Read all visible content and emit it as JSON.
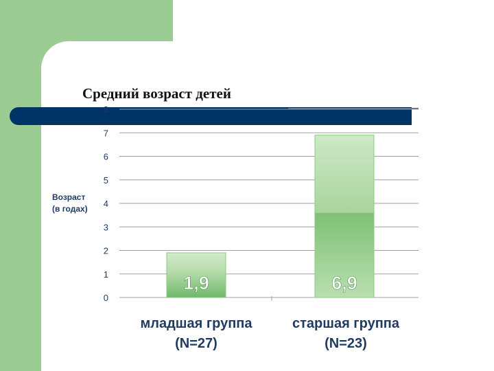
{
  "slide": {
    "title": "Средний возраст детей"
  },
  "chart_data": {
    "type": "bar",
    "categories": [
      "младшая группа (N=27)",
      "старшая группа (N=23)"
    ],
    "category_lines": [
      [
        "младшая группа",
        "(N=27)"
      ],
      [
        "старшая группа",
        "(N=23)"
      ]
    ],
    "values": [
      1.9,
      6.9
    ],
    "value_labels": [
      "1,9",
      "6,9"
    ],
    "title": "",
    "xlabel": "",
    "ylabel": "Возраст (в годах)",
    "ylabel_lines": [
      "Возраст",
      "(в годах)"
    ],
    "ylim": [
      0,
      8
    ],
    "yticks": [
      0,
      1,
      2,
      3,
      4,
      5,
      6,
      7,
      8
    ],
    "grid": true,
    "colors": {
      "bar_light": "#cfe8c7",
      "bar_mid": "#a6d59b",
      "bar_dark": "#6fb86a",
      "grid": "#a0a0a0",
      "tick": "#1f3b63",
      "label": "#1f3b63"
    }
  }
}
